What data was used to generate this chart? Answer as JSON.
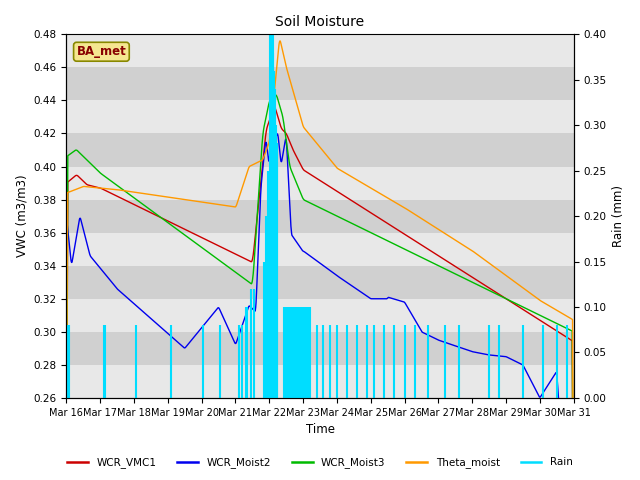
{
  "title": "Soil Moisture",
  "xlabel": "Time",
  "ylabel_left": "VWC (m3/m3)",
  "ylabel_right": "Rain (mm)",
  "ylim_left": [
    0.26,
    0.48
  ],
  "ylim_right": [
    0.0,
    0.4
  ],
  "yticks_left": [
    0.26,
    0.28,
    0.3,
    0.32,
    0.34,
    0.36,
    0.38,
    0.4,
    0.42,
    0.44,
    0.46,
    0.48
  ],
  "yticks_right": [
    0.0,
    0.05,
    0.1,
    0.15,
    0.2,
    0.25,
    0.3,
    0.35,
    0.4
  ],
  "xtick_labels": [
    "Mar 16",
    "Mar 17",
    "Mar 18",
    "Mar 19",
    "Mar 20",
    "Mar 21",
    "Mar 22",
    "Mar 23",
    "Mar 24",
    "Mar 25",
    "Mar 26",
    "Mar 27",
    "Mar 28",
    "Mar 29",
    "Mar 30",
    "Mar 31"
  ],
  "colors": {
    "WCR_VMC1": "#cc0000",
    "WCR_Moist2": "#0000ee",
    "WCR_Moist3": "#00bb00",
    "Theta_moist": "#ff9900",
    "Rain": "#00ddff",
    "plot_bg_light": "#e8e8e8",
    "plot_bg_dark": "#d0d0d0",
    "grid_color": "#ffffff"
  },
  "station_label": "BA_met",
  "n_points": 1440
}
